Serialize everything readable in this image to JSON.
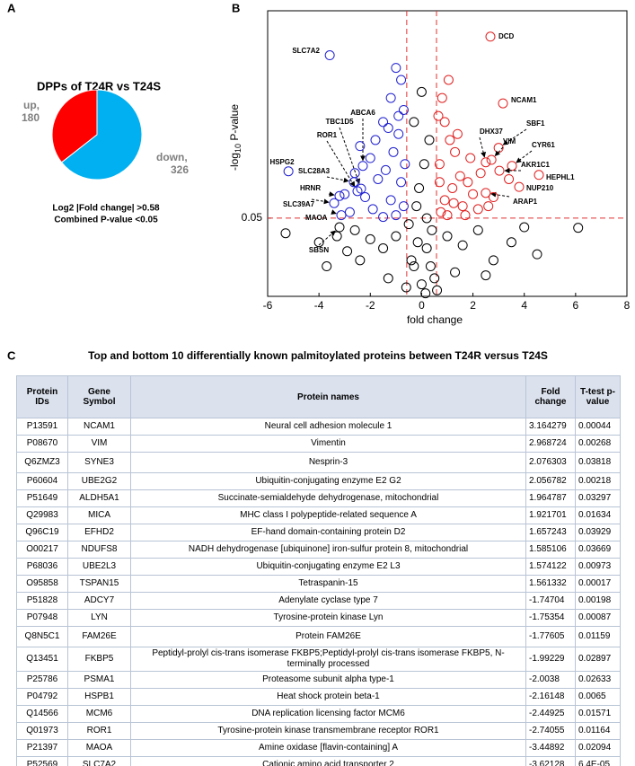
{
  "chart_data": [
    {
      "type": "pie",
      "panel": "A",
      "title": "DPPs of T24R vs T24S",
      "categories": [
        "up,",
        "down,"
      ],
      "values": [
        180,
        326
      ],
      "colors": [
        "#ff0000",
        "#00b0f0"
      ],
      "annotations": [
        "Log2 |Fold change| >0.58",
        "Combined P-value <0.05"
      ]
    },
    {
      "type": "scatter",
      "panel": "B",
      "xlabel": "fold change",
      "ylabel": [
        "-log",
        "10",
        " P-value"
      ],
      "xlim": [
        -6,
        8
      ],
      "xticks": [
        -6,
        -4,
        -2,
        0,
        2,
        4,
        6,
        8
      ],
      "ylim": [
        0,
        4.75
      ],
      "yticks": [
        {
          "value": 1.301,
          "label": "0.05"
        }
      ],
      "thresholds": {
        "x": [
          -0.58,
          0.58
        ],
        "y": 1.301,
        "color": "#e03030"
      },
      "series": [
        {
          "color": "#e02020",
          "x": [
            2.68,
            3.17,
            3.0,
            2.72,
            2.5,
            3.52,
            3.03,
            4.57,
            3.8,
            2.5,
            0.8,
            0.9,
            1.1,
            1.3,
            0.7,
            1.5,
            1.8,
            2.0,
            1.2,
            0.9,
            1.6,
            2.2,
            0.75,
            1.0,
            2.6,
            1.4,
            0.65,
            1.9,
            2.3,
            1.05,
            3.4,
            2.8,
            0.7,
            1.25,
            1.7
          ],
          "values": [
            4.32,
            3.21,
            2.47,
            2.27,
            2.23,
            2.17,
            2.09,
            2.02,
            1.82,
            1.72,
            3.3,
            2.9,
            2.6,
            2.4,
            2.2,
            2.0,
            1.9,
            1.7,
            1.8,
            1.6,
            1.5,
            1.45,
            1.4,
            1.35,
            1.5,
            2.7,
            3.0,
            2.3,
            2.05,
            3.6,
            1.95,
            1.65,
            1.9,
            1.55,
            1.35
          ],
          "labels": [
            "DCD",
            "NCAM1",
            "SBF1",
            "VIM",
            "DHX37",
            "CYR61",
            "AKR1C1",
            "HEPHL1",
            "NUP210",
            "ARAP1",
            null,
            null,
            null,
            null,
            null,
            null,
            null,
            null,
            null,
            null,
            null,
            null,
            null,
            null,
            null,
            null,
            null,
            null,
            null,
            null,
            null,
            null,
            null,
            null,
            null
          ]
        },
        {
          "color": "#2020d0",
          "x": [
            -3.58,
            -5.19,
            -2.5,
            -2.36,
            -2.29,
            -2.64,
            -3.2,
            -3.41,
            -3.13,
            -1.0,
            -0.8,
            -1.2,
            -0.7,
            -1.5,
            -0.9,
            -1.8,
            -1.1,
            -2.0,
            -0.65,
            -1.4,
            -2.6,
            -1.7,
            -0.8,
            -2.2,
            -1.2,
            -3.0,
            -0.7,
            -1.9,
            -2.8,
            -1.0,
            -1.5,
            -0.9,
            -2.4,
            -1.3
          ],
          "values": [
            4.01,
            2.08,
            1.75,
            1.79,
            2.17,
            1.9,
            1.67,
            1.55,
            1.35,
            3.8,
            3.6,
            3.3,
            3.1,
            2.9,
            2.7,
            2.6,
            2.4,
            2.3,
            2.2,
            2.1,
            2.05,
            1.95,
            1.9,
            1.65,
            1.6,
            1.7,
            1.5,
            1.45,
            1.4,
            1.35,
            1.32,
            3.0,
            2.5,
            2.8
          ],
          "labels": [
            "SLC7A2",
            "HSPG2",
            "ROR1",
            "TBC1D5",
            "ABCA6",
            "SLC28A3",
            "HRNR",
            "SLC39A7",
            "MAOA",
            null,
            null,
            null,
            null,
            null,
            null,
            null,
            null,
            null,
            null,
            null,
            null,
            null,
            null,
            null,
            null,
            null,
            null,
            null,
            null,
            null,
            null,
            null,
            null,
            null
          ]
        },
        {
          "color": "#000000",
          "x": [
            -3.2,
            6.1,
            -5.3,
            -4.0,
            -3.3,
            -2.6,
            -2.0,
            -1.5,
            -1.0,
            -0.5,
            -0.3,
            0,
            0.2,
            0.4,
            0.5,
            -0.2,
            0.1,
            -0.1,
            0.3,
            -0.3,
            0.0,
            0.2,
            1.0,
            1.6,
            2.2,
            2.8,
            3.5,
            4.0,
            1.3,
            -1.3,
            -2.4,
            -0.6,
            0.6,
            -0.4,
            0.35,
            -0.15,
            0.15,
            -2.9,
            2.5,
            -3.7,
            4.5
          ],
          "values": [
            1.15,
            1.14,
            1.05,
            0.9,
            1.0,
            1.1,
            0.95,
            0.8,
            1.0,
            1.2,
            0.5,
            0.2,
            0.8,
            1.1,
            0.3,
            1.5,
            2.2,
            1.8,
            2.6,
            2.9,
            3.4,
            1.3,
            1.0,
            0.85,
            1.1,
            0.6,
            0.9,
            1.15,
            0.4,
            0.3,
            0.6,
            0.15,
            0.1,
            0.6,
            0.5,
            0.9,
            0.05,
            0.75,
            0.35,
            0.5,
            0.7
          ],
          "labels": [
            "SBSN",
            null,
            null,
            null,
            null,
            null,
            null,
            null,
            null,
            null,
            null,
            null,
            null,
            null,
            null,
            null,
            null,
            null,
            null,
            null,
            null,
            null,
            null,
            null,
            null,
            null,
            null,
            null,
            null,
            null,
            null,
            null,
            null,
            null,
            null,
            null,
            null,
            null,
            null,
            null,
            null
          ]
        }
      ]
    }
  ],
  "table": {
    "panel": "C",
    "title": "Top and bottom 10 differentially known palmitoylated proteins between T24R versus T24S",
    "header": [
      "Protein IDs",
      "Gene Symbol",
      "Protein names",
      "Fold change",
      "T-test p-value"
    ],
    "rows": [
      [
        "P13591",
        "NCAM1",
        "Neural cell adhesion molecule 1",
        "3.164279",
        "0.00044"
      ],
      [
        "P08670",
        "VIM",
        "Vimentin",
        "2.968724",
        "0.00268"
      ],
      [
        "Q6ZMZ3",
        "SYNE3",
        "Nesprin-3",
        "2.076303",
        "0.03818"
      ],
      [
        "P60604",
        "UBE2G2",
        "Ubiquitin-conjugating enzyme E2 G2",
        "2.056782",
        "0.00218"
      ],
      [
        "P51649",
        "ALDH5A1",
        "Succinate-semialdehyde dehydrogenase, mitochondrial",
        "1.964787",
        "0.03297"
      ],
      [
        "Q29983",
        "MICA",
        "MHC class I polypeptide-related sequence A",
        "1.921701",
        "0.01634"
      ],
      [
        "Q96C19",
        "EFHD2",
        "EF-hand domain-containing protein D2",
        "1.657243",
        "0.03929"
      ],
      [
        "O00217",
        "NDUFS8",
        "NADH dehydrogenase [ubiquinone] iron-sulfur protein 8, mitochondrial",
        "1.585106",
        "0.03669"
      ],
      [
        "P68036",
        "UBE2L3",
        "Ubiquitin-conjugating enzyme E2 L3",
        "1.574122",
        "0.00973"
      ],
      [
        "O95858",
        "TSPAN15",
        "Tetraspanin-15",
        "1.561332",
        "0.00017"
      ],
      [
        "P51828",
        "ADCY7",
        "Adenylate cyclase type 7",
        "-1.74704",
        "0.00198"
      ],
      [
        "P07948",
        "LYN",
        "Tyrosine-protein kinase Lyn",
        "-1.75354",
        "0.00087"
      ],
      [
        "Q8N5C1",
        "FAM26E",
        "Protein FAM26E",
        "-1.77605",
        "0.01159"
      ],
      [
        "Q13451",
        "FKBP5",
        "Peptidyl-prolyl cis-trans isomerase FKBP5;Peptidyl-prolyl cis-trans isomerase FKBP5, N-terminally processed",
        "-1.99229",
        "0.02897"
      ],
      [
        "P25786",
        "PSMA1",
        "Proteasome subunit alpha type-1",
        "-2.0038",
        "0.02633"
      ],
      [
        "P04792",
        "HSPB1",
        "Heat shock protein beta-1",
        "-2.16148",
        "0.0065"
      ],
      [
        "Q14566",
        "MCM6",
        "DNA replication licensing factor MCM6",
        "-2.44925",
        "0.01571"
      ],
      [
        "Q01973",
        "ROR1",
        "Tyrosine-protein kinase transmembrane receptor ROR1",
        "-2.74055",
        "0.01164"
      ],
      [
        "P21397",
        "MAOA",
        "Amine oxidase [flavin-containing] A",
        "-3.44892",
        "0.02094"
      ],
      [
        "P52569",
        "SLC7A2",
        "Cationic amino acid transporter 2",
        "-3.62128",
        "6.4E-05"
      ]
    ]
  }
}
